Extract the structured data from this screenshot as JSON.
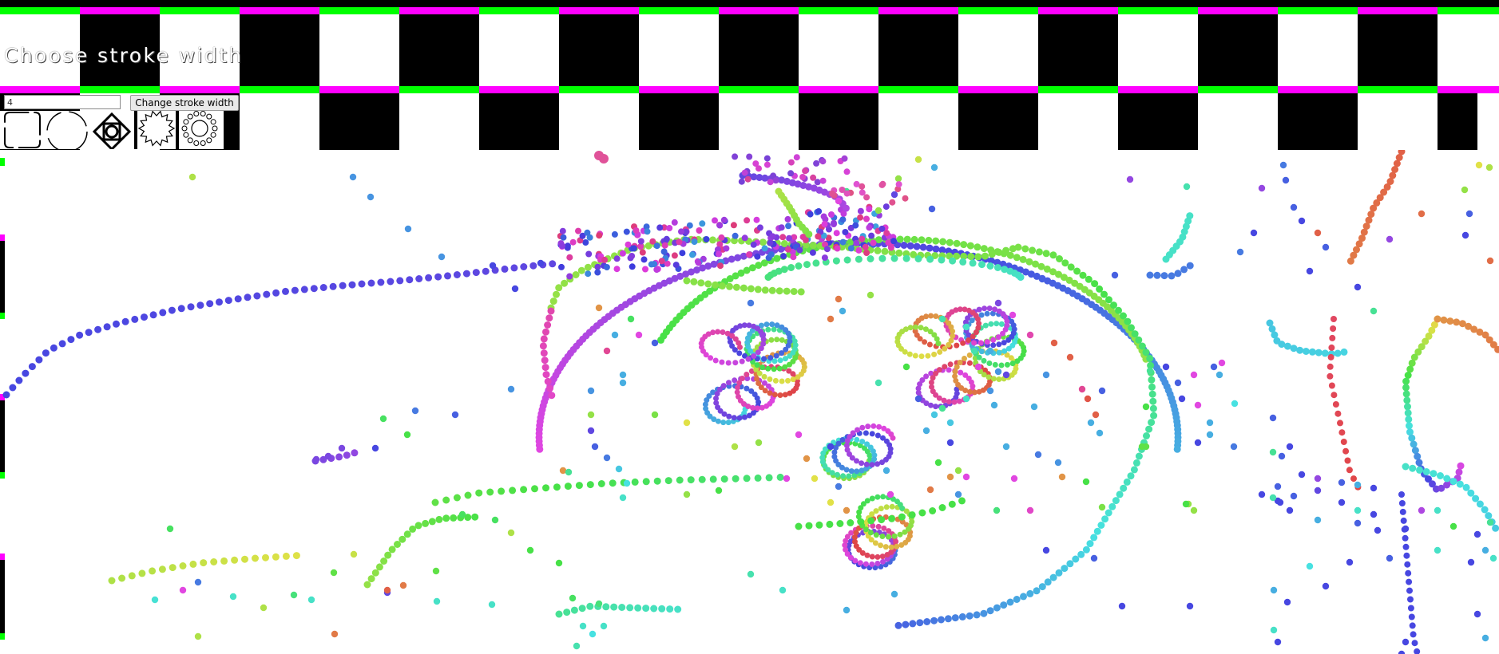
{
  "header": {
    "title": "Choose stroke width",
    "colors": {
      "checker_dark": "#000000",
      "checker_light": "#ffffff",
      "stripe_magenta": "#ff00ff",
      "stripe_green": "#00ff00"
    }
  },
  "controls": {
    "width_value": "4",
    "change_button_label": "Change stroke width"
  },
  "brushes": [
    {
      "icon": "rounded-square-icon"
    },
    {
      "icon": "circle-icon"
    },
    {
      "icon": "diamond-square-icon"
    },
    {
      "icon": "star-burst-icon"
    },
    {
      "icon": "dotted-sun-icon"
    }
  ],
  "canvas": {
    "background": "#ffffff",
    "drawing": "rainbow dotted face doodle"
  }
}
